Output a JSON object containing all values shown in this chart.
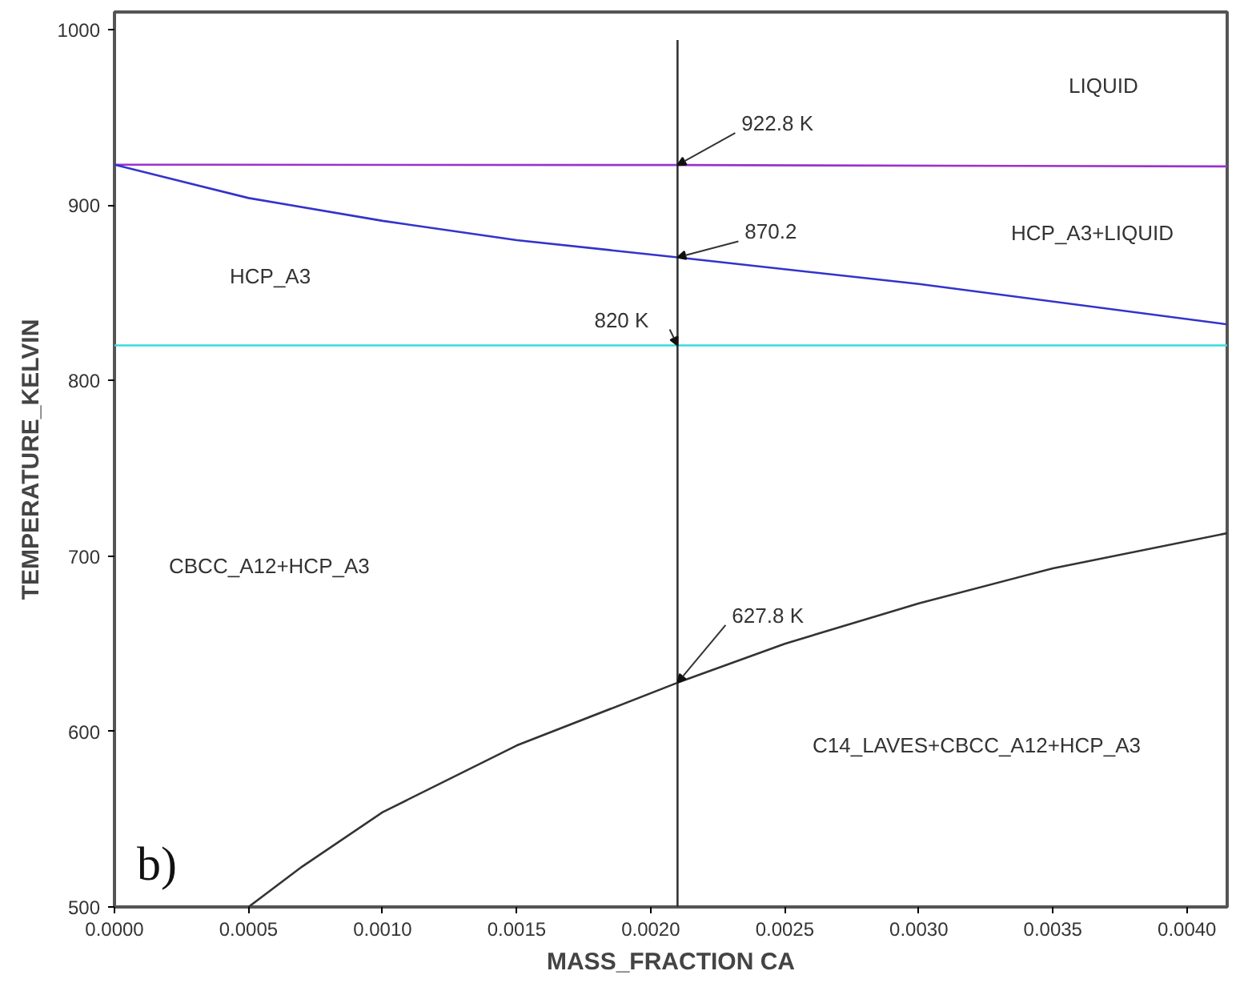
{
  "chart_data": {
    "type": "line",
    "xlabel": "MASS_FRACTION CA",
    "ylabel": "TEMPERATURE_KELVIN",
    "xlim": [
      0,
      0.00415
    ],
    "ylim": [
      500,
      1010
    ],
    "xticks": [
      {
        "value": 0,
        "label": "0.0000"
      },
      {
        "value": 0.0005,
        "label": "0.0005"
      },
      {
        "value": 0.001,
        "label": "0.0010"
      },
      {
        "value": 0.0015,
        "label": "0.0015"
      },
      {
        "value": 0.002,
        "label": "0.0020"
      },
      {
        "value": 0.0025,
        "label": "0.0025"
      },
      {
        "value": 0.003,
        "label": "0.0030"
      },
      {
        "value": 0.0035,
        "label": "0.0035"
      },
      {
        "value": 0.004,
        "label": "0.0040"
      }
    ],
    "yticks": [
      500,
      600,
      700,
      800,
      900,
      1000
    ],
    "marker": "none",
    "line_style": "solid",
    "series": [
      {
        "color": "#9933cc",
        "x": [
          0,
          0.0021,
          0.00415
        ],
        "values": [
          923,
          922.8,
          922
        ],
        "value_labels": [
          null,
          "922.8 K",
          null
        ]
      },
      {
        "color": "#3333cc",
        "x": [
          0,
          0.0005,
          0.001,
          0.0015,
          0.0021,
          0.003,
          0.00415
        ],
        "values": [
          923,
          904,
          891,
          880,
          870.2,
          855,
          832
        ],
        "value_labels": [
          null,
          null,
          null,
          null,
          "870.2",
          null,
          null
        ]
      },
      {
        "color": "#33dddd",
        "x": [
          0,
          0.0021,
          0.00415
        ],
        "values": [
          820,
          820,
          820
        ],
        "value_labels": [
          null,
          "820 K",
          null
        ]
      },
      {
        "color": "#333333",
        "x": [
          0.0005,
          0.0007,
          0.001,
          0.0015,
          0.0021,
          0.0025,
          0.003,
          0.0035,
          0.00415
        ],
        "values": [
          500,
          523,
          554,
          592,
          627.8,
          650,
          673,
          693,
          713
        ],
        "value_labels": [
          null,
          null,
          null,
          null,
          "627.8 K",
          null,
          null,
          null,
          null
        ]
      },
      {
        "color": "#333333",
        "x": [
          0.0021,
          0.0021
        ],
        "values": [
          500,
          994
        ]
      }
    ],
    "annotations": [
      "LIQUID",
      "HCP_A3+LIQUID",
      "HCP_A3",
      "CBCC_A12+HCP_A3",
      "C14_LAVES+CBCC_A12+HCP_A3",
      "b)"
    ]
  }
}
